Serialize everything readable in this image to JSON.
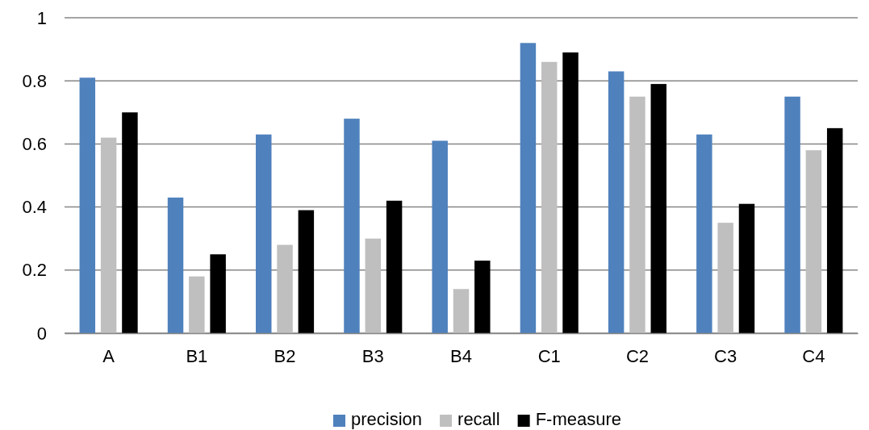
{
  "chart_data": {
    "type": "bar",
    "categories": [
      "A",
      "B1",
      "B2",
      "B3",
      "B4",
      "C1",
      "C2",
      "C3",
      "C4"
    ],
    "series": [
      {
        "name": "precision",
        "color": "#4f81bd",
        "values": [
          0.81,
          0.43,
          0.63,
          0.68,
          0.61,
          0.92,
          0.83,
          0.63,
          0.75
        ]
      },
      {
        "name": "recall",
        "color": "#bfbfbf",
        "values": [
          0.62,
          0.18,
          0.28,
          0.3,
          0.14,
          0.86,
          0.75,
          0.35,
          0.58
        ]
      },
      {
        "name": "F-measure",
        "color": "#000000",
        "values": [
          0.7,
          0.25,
          0.39,
          0.42,
          0.23,
          0.89,
          0.79,
          0.41,
          0.65
        ]
      }
    ],
    "ylim": [
      0,
      1
    ],
    "yticks": [
      0,
      0.2,
      0.4,
      0.6,
      0.8,
      1
    ],
    "grid": "y",
    "legend": "bottom"
  }
}
